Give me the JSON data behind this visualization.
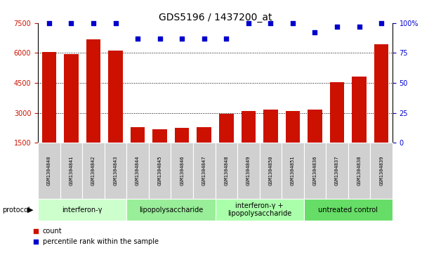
{
  "title": "GDS5196 / 1437200_at",
  "samples": [
    "GSM1304840",
    "GSM1304841",
    "GSM1304842",
    "GSM1304843",
    "GSM1304844",
    "GSM1304845",
    "GSM1304846",
    "GSM1304847",
    "GSM1304848",
    "GSM1304849",
    "GSM1304850",
    "GSM1304851",
    "GSM1304836",
    "GSM1304837",
    "GSM1304838",
    "GSM1304839"
  ],
  "counts": [
    6050,
    5930,
    6680,
    6130,
    2280,
    2170,
    2250,
    2270,
    2940,
    3080,
    3180,
    3090,
    3150,
    4530,
    4820,
    6420
  ],
  "percentile_y": [
    100,
    100,
    100,
    100,
    87,
    87,
    87,
    87,
    87,
    100,
    100,
    100,
    92,
    97,
    97,
    100
  ],
  "groups": [
    {
      "label": "interferon-γ",
      "start": 0,
      "end": 4,
      "color": "#ccffcc"
    },
    {
      "label": "lipopolysaccharide",
      "start": 4,
      "end": 8,
      "color": "#99ee99"
    },
    {
      "label": "interferon-γ +\nlipopolysaccharide",
      "start": 8,
      "end": 12,
      "color": "#aaffaa"
    },
    {
      "label": "untreated control",
      "start": 12,
      "end": 16,
      "color": "#66dd66"
    }
  ],
  "ylim_left": [
    1500,
    7500
  ],
  "ylim_right": [
    0,
    100
  ],
  "yticks_left": [
    1500,
    3000,
    4500,
    6000,
    7500
  ],
  "yticks_right": [
    0,
    25,
    50,
    75,
    100
  ],
  "grid_lines": [
    3000,
    4500,
    6000
  ],
  "bar_color": "#cc1100",
  "dot_color": "#0000cc",
  "sample_box_color": "#d0d0d0",
  "title_fontsize": 10,
  "tick_fontsize": 7,
  "sample_fontsize": 5,
  "group_fontsize": 7,
  "legend_fontsize": 7,
  "background_color": "#ffffff"
}
